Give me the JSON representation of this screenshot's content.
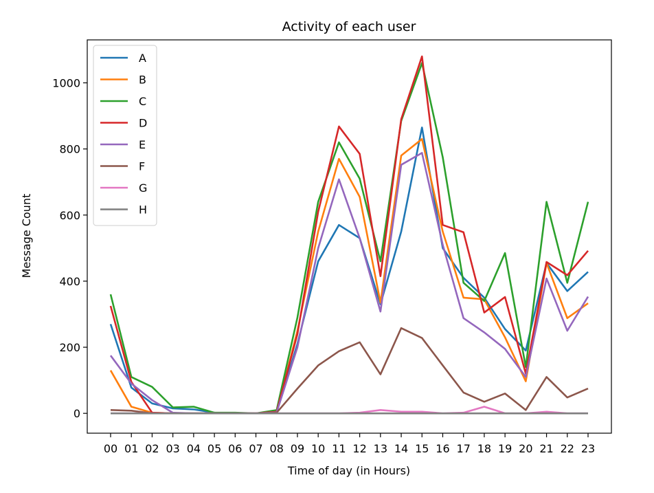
{
  "chart_data": {
    "type": "line",
    "title": "Activity of each user",
    "xlabel": "Time of day (in Hours)",
    "ylabel": "Message Count",
    "categories": [
      "00",
      "01",
      "02",
      "03",
      "04",
      "05",
      "06",
      "07",
      "08",
      "09",
      "10",
      "11",
      "12",
      "13",
      "14",
      "15",
      "16",
      "17",
      "18",
      "19",
      "20",
      "21",
      "22",
      "23"
    ],
    "ylim": [
      -60,
      1130
    ],
    "yticks": [
      0,
      200,
      400,
      600,
      800,
      1000
    ],
    "grid": false,
    "legend_position": "top-left",
    "series": [
      {
        "name": "A",
        "color": "#1f77b4",
        "values": [
          270,
          78,
          30,
          15,
          12,
          2,
          0,
          0,
          5,
          210,
          460,
          570,
          530,
          330,
          550,
          865,
          500,
          410,
          350,
          255,
          190,
          455,
          370,
          428
        ]
      },
      {
        "name": "B",
        "color": "#ff7f0e",
        "values": [
          130,
          20,
          2,
          0,
          0,
          0,
          0,
          0,
          3,
          250,
          550,
          770,
          655,
          335,
          780,
          830,
          550,
          350,
          345,
          230,
          97,
          455,
          288,
          333
        ]
      },
      {
        "name": "C",
        "color": "#2ca02c",
        "values": [
          360,
          110,
          80,
          18,
          20,
          2,
          2,
          0,
          10,
          290,
          640,
          820,
          710,
          460,
          885,
          1060,
          775,
          395,
          340,
          485,
          140,
          640,
          395,
          640
        ]
      },
      {
        "name": "D",
        "color": "#d62728",
        "values": [
          325,
          95,
          2,
          0,
          0,
          0,
          0,
          0,
          5,
          240,
          610,
          868,
          785,
          415,
          890,
          1080,
          570,
          548,
          305,
          352,
          120,
          458,
          418,
          492
        ]
      },
      {
        "name": "E",
        "color": "#9467bd",
        "values": [
          175,
          90,
          40,
          2,
          0,
          0,
          0,
          0,
          3,
          200,
          500,
          708,
          530,
          308,
          752,
          788,
          510,
          288,
          245,
          195,
          110,
          408,
          250,
          353
        ]
      },
      {
        "name": "F",
        "color": "#8c564b",
        "values": [
          10,
          8,
          0,
          0,
          0,
          0,
          0,
          0,
          2,
          75,
          145,
          188,
          215,
          118,
          258,
          228,
          145,
          63,
          35,
          60,
          10,
          110,
          48,
          75
        ]
      },
      {
        "name": "G",
        "color": "#e377c2",
        "values": [
          0,
          0,
          0,
          0,
          0,
          0,
          0,
          0,
          0,
          0,
          0,
          0,
          2,
          10,
          5,
          5,
          0,
          2,
          20,
          0,
          0,
          5,
          0,
          0
        ]
      },
      {
        "name": "H",
        "color": "#7f7f7f",
        "values": [
          0,
          0,
          0,
          0,
          0,
          0,
          0,
          0,
          0,
          0,
          0,
          0,
          0,
          0,
          0,
          0,
          0,
          0,
          0,
          0,
          0,
          0,
          0,
          0
        ]
      }
    ]
  }
}
